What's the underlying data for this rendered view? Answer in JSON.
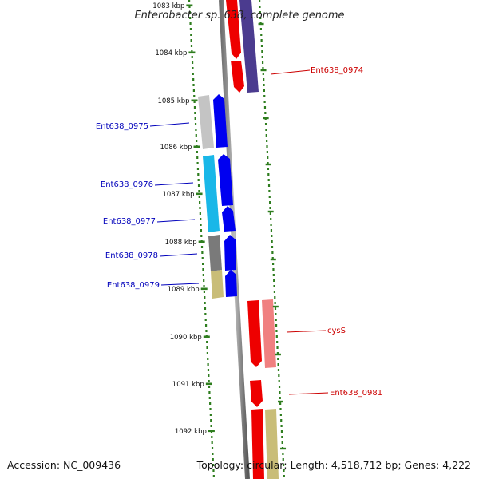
{
  "title": "Enterobacter sp. 638, complete genome",
  "footer": {
    "accession": "Accession: NC_009436",
    "topology": "Topology: circular; Length: 4,518,712 bp; Genes: 4,222"
  },
  "ticks": [
    "1083 kbp",
    "1084 kbp",
    "1085 kbp",
    "1086 kbp",
    "1087 kbp",
    "1088 kbp",
    "1089 kbp",
    "1090 kbp",
    "1091 kbp",
    "1092 kbp"
  ],
  "gene_labels": [
    {
      "text": "Ent638_0974",
      "color": "#cc0000"
    },
    {
      "text": "Ent638_0975",
      "color": "#0000bb"
    },
    {
      "text": "Ent638_0976",
      "color": "#0000bb"
    },
    {
      "text": "Ent638_0977",
      "color": "#0000bb"
    },
    {
      "text": "Ent638_0978",
      "color": "#0000bb"
    },
    {
      "text": "Ent638_0979",
      "color": "#0000bb"
    },
    {
      "text": "cysS",
      "color": "#cc0000"
    },
    {
      "text": "Ent638_0981",
      "color": "#cc0000"
    }
  ],
  "colors": {
    "forward_strand_gene": "#ff0000",
    "reverse_strand_gene": "#0000ff",
    "backbone": "#888888",
    "tick_marks": "#2e7d1e"
  }
}
